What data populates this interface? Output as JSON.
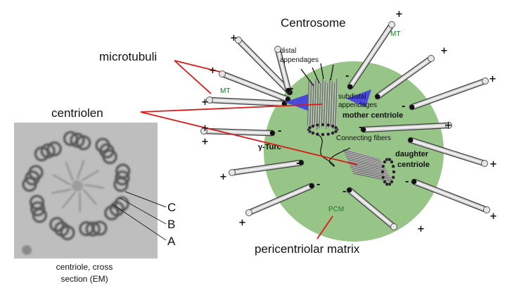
{
  "colors": {
    "pcm_fill": "#97c587",
    "tube_fill": "#c9c9c9",
    "tube_stroke": "#555555",
    "pointer_red": "#d81b1b",
    "triangle_blue": "#4a4ad8",
    "green_text": "#1d7a25"
  },
  "labels": {
    "centrosome": "Centrosome",
    "microtubuli": "microtubuli",
    "centriolen": "centriolen",
    "mt_top": "MT",
    "mt_left": "MT",
    "distal": "distal",
    "appendages": "appendages",
    "subdistal": "subdistal",
    "subdistal_appendages": "appendages",
    "mother_centriole": "mother centriole",
    "connecting_fibers": "Connecting fibers",
    "daughter": "daughter",
    "daughter_centriole": "centriole",
    "gamma_turc": "γ-Turc",
    "pcm": "PCM",
    "pericentriolar_matrix": "pericentriolar matrix",
    "em_c": "C",
    "em_b": "B",
    "em_a": "A",
    "em_caption_1": "centriole, cross",
    "em_caption_2": "section (EM)"
  },
  "signs": {
    "plus": "+",
    "minus": "-"
  }
}
